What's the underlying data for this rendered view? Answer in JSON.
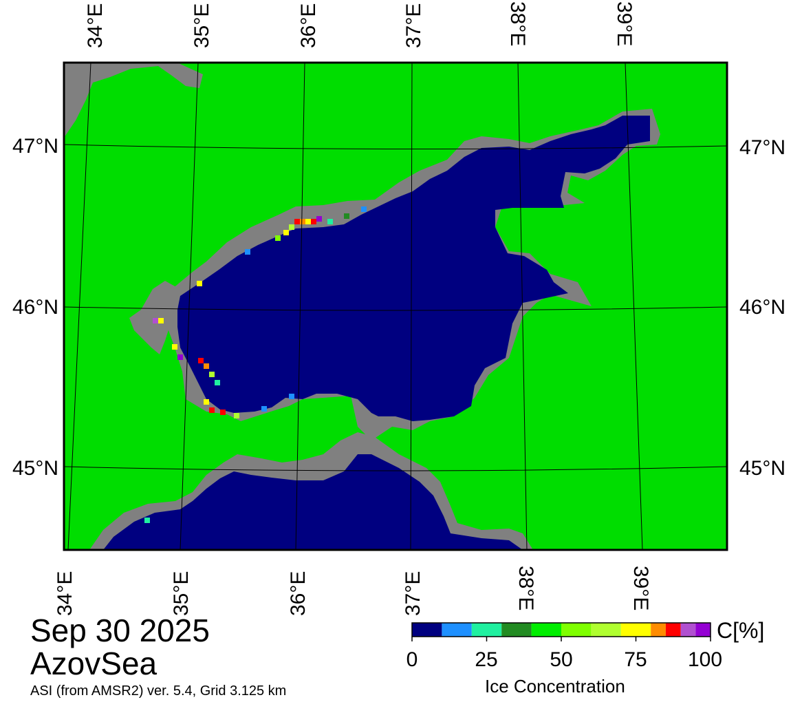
{
  "map": {
    "colors": {
      "land": "#00dd00",
      "water": "#000080",
      "coast_mask": "#808080",
      "frame": "#000000"
    },
    "top_lon_labels": [
      "34°E",
      "35°E",
      "36°E",
      "37°E",
      "38°E",
      "39°E"
    ],
    "bottom_lon_labels": [
      "34°E",
      "35°E",
      "36°E",
      "37°E",
      "38°E",
      "39°E"
    ],
    "left_lat_labels": [
      "47°N",
      "46°N",
      "45°N"
    ],
    "right_lat_labels": [
      "47°N",
      "46°N",
      "45°N"
    ]
  },
  "caption": {
    "date": "Sep 30 2025",
    "region": "AzovSea",
    "source": "ASI (from AMSR2) ver. 5.4,  Grid 3.125 km"
  },
  "colorbar": {
    "unit": "C[%]",
    "title": "Ice Concentration",
    "ticks": [
      "0",
      "25",
      "50",
      "75",
      "100"
    ],
    "range": [
      0,
      100
    ],
    "bins": [
      {
        "from": 0,
        "to": 10,
        "color": "#000080"
      },
      {
        "from": 10,
        "to": 20,
        "color": "#1e90ff"
      },
      {
        "from": 20,
        "to": 30,
        "color": "#20f0a0"
      },
      {
        "from": 30,
        "to": 40,
        "color": "#228b22"
      },
      {
        "from": 40,
        "to": 50,
        "color": "#00ee00"
      },
      {
        "from": 50,
        "to": 60,
        "color": "#7fff00"
      },
      {
        "from": 60,
        "to": 70,
        "color": "#b0ff30"
      },
      {
        "from": 70,
        "to": 80,
        "color": "#ffff00"
      },
      {
        "from": 80,
        "to": 85,
        "color": "#ff8c00"
      },
      {
        "from": 85,
        "to": 90,
        "color": "#ff0000"
      },
      {
        "from": 90,
        "to": 95,
        "color": "#b050d0"
      },
      {
        "from": 95,
        "to": 100,
        "color": "#9400d3"
      }
    ]
  }
}
